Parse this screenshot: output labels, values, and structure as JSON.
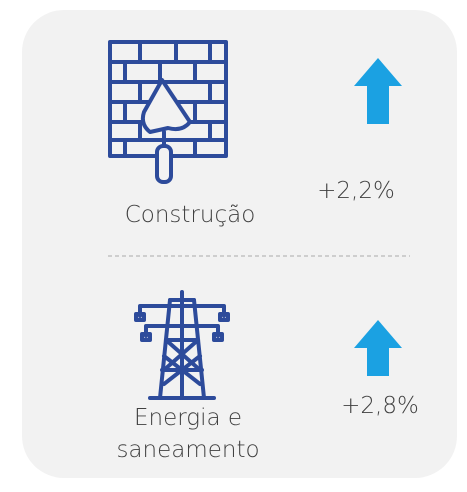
{
  "items": [
    {
      "label_lines": [
        "Construção"
      ],
      "change": "+2,2%"
    },
    {
      "label_lines": [
        "Energia e",
        "saneamento"
      ],
      "change": "+2,8%"
    }
  ]
}
